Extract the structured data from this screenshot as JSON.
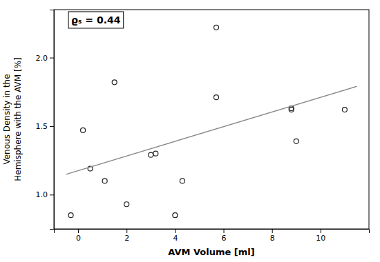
{
  "chart_data": {
    "type": "scatter",
    "x_label": "AVM Volume [ml]",
    "y_label": "Venous Density in the\nHemisphere with the AVM [%]",
    "annotations": [
      "ϱₛ = 0.44"
    ],
    "series": [
      {
        "type": "scatter",
        "marker": "open-circle",
        "color": "#222222",
        "x": [
          -0.3,
          0.2,
          0.5,
          1.1,
          1.5,
          2.0,
          3.0,
          3.2,
          4.0,
          4.3,
          5.7,
          5.7,
          8.8,
          8.8,
          9.0,
          11.0
        ],
        "values": [
          0.85,
          1.47,
          1.19,
          1.1,
          1.82,
          0.93,
          1.29,
          1.3,
          0.85,
          1.1,
          1.71,
          2.22,
          1.62,
          1.63,
          1.39,
          1.62
        ]
      },
      {
        "type": "line",
        "color": "#888888",
        "x": [
          -0.5,
          11.5
        ],
        "values": [
          1.14825,
          1.79025
        ]
      }
    ],
    "xlim": [
      -1,
      12
    ],
    "ylim": [
      0.75,
      2.35
    ],
    "xticks": [
      0,
      2,
      4,
      6,
      8,
      10
    ],
    "yticks": [
      {
        "value": 1.0,
        "label": "1.0"
      },
      {
        "value": 1.5,
        "label": "1.5"
      },
      {
        "value": 2.0,
        "label": "2.0"
      }
    ],
    "grid": false
  }
}
